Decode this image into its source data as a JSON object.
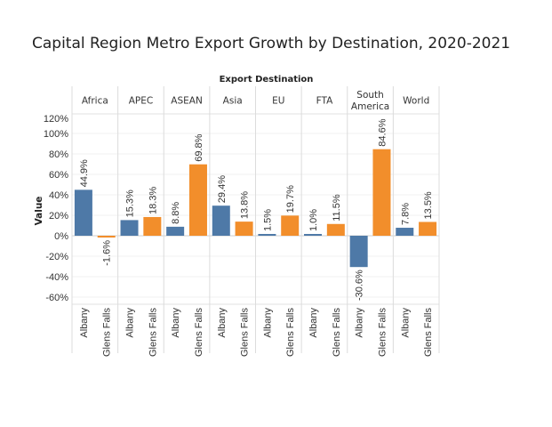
{
  "chart_data": {
    "type": "bar",
    "title": "Capital Region Metro Export Growth by Destination, 2020-2021",
    "column_header_title": "Export Destination",
    "ylabel": "Value",
    "xlabel": "",
    "ylim": [
      -67,
      119
    ],
    "y_ticks": [
      120,
      100,
      80,
      60,
      40,
      20,
      0,
      -20,
      -40,
      -60
    ],
    "y_tick_labels": [
      "120%",
      "100%",
      "80%",
      "60%",
      "40%",
      "20%",
      "0%",
      "-20%",
      "-40%",
      "-60%"
    ],
    "grid": true,
    "categories": [
      "Africa",
      "APEC",
      "ASEAN",
      "Asia",
      "EU",
      "FTA",
      "South America",
      "World"
    ],
    "category_header_lines": [
      [
        "Africa"
      ],
      [
        "APEC"
      ],
      [
        "ASEAN"
      ],
      [
        "Asia"
      ],
      [
        "EU"
      ],
      [
        "FTA"
      ],
      [
        "South",
        "America"
      ],
      [
        "World"
      ]
    ],
    "series": [
      {
        "name": "Albany",
        "color": "#4e79a7",
        "values": [
          44.9,
          15.3,
          8.8,
          29.4,
          1.5,
          1.0,
          -30.6,
          7.8
        ],
        "labels": [
          "44.9%",
          "15.3%",
          "8.8%",
          "29.4%",
          "1.5%",
          "1.0%",
          "-30.6%",
          "7.8%"
        ]
      },
      {
        "name": "Glens Falls",
        "color": "#f28e2b",
        "values": [
          -1.6,
          18.3,
          69.8,
          13.8,
          19.7,
          11.5,
          84.6,
          13.5
        ],
        "labels": [
          "-1.6%",
          "18.3%",
          "69.8%",
          "13.8%",
          "19.7%",
          "11.5%",
          "84.6%",
          "13.5%"
        ]
      }
    ]
  }
}
